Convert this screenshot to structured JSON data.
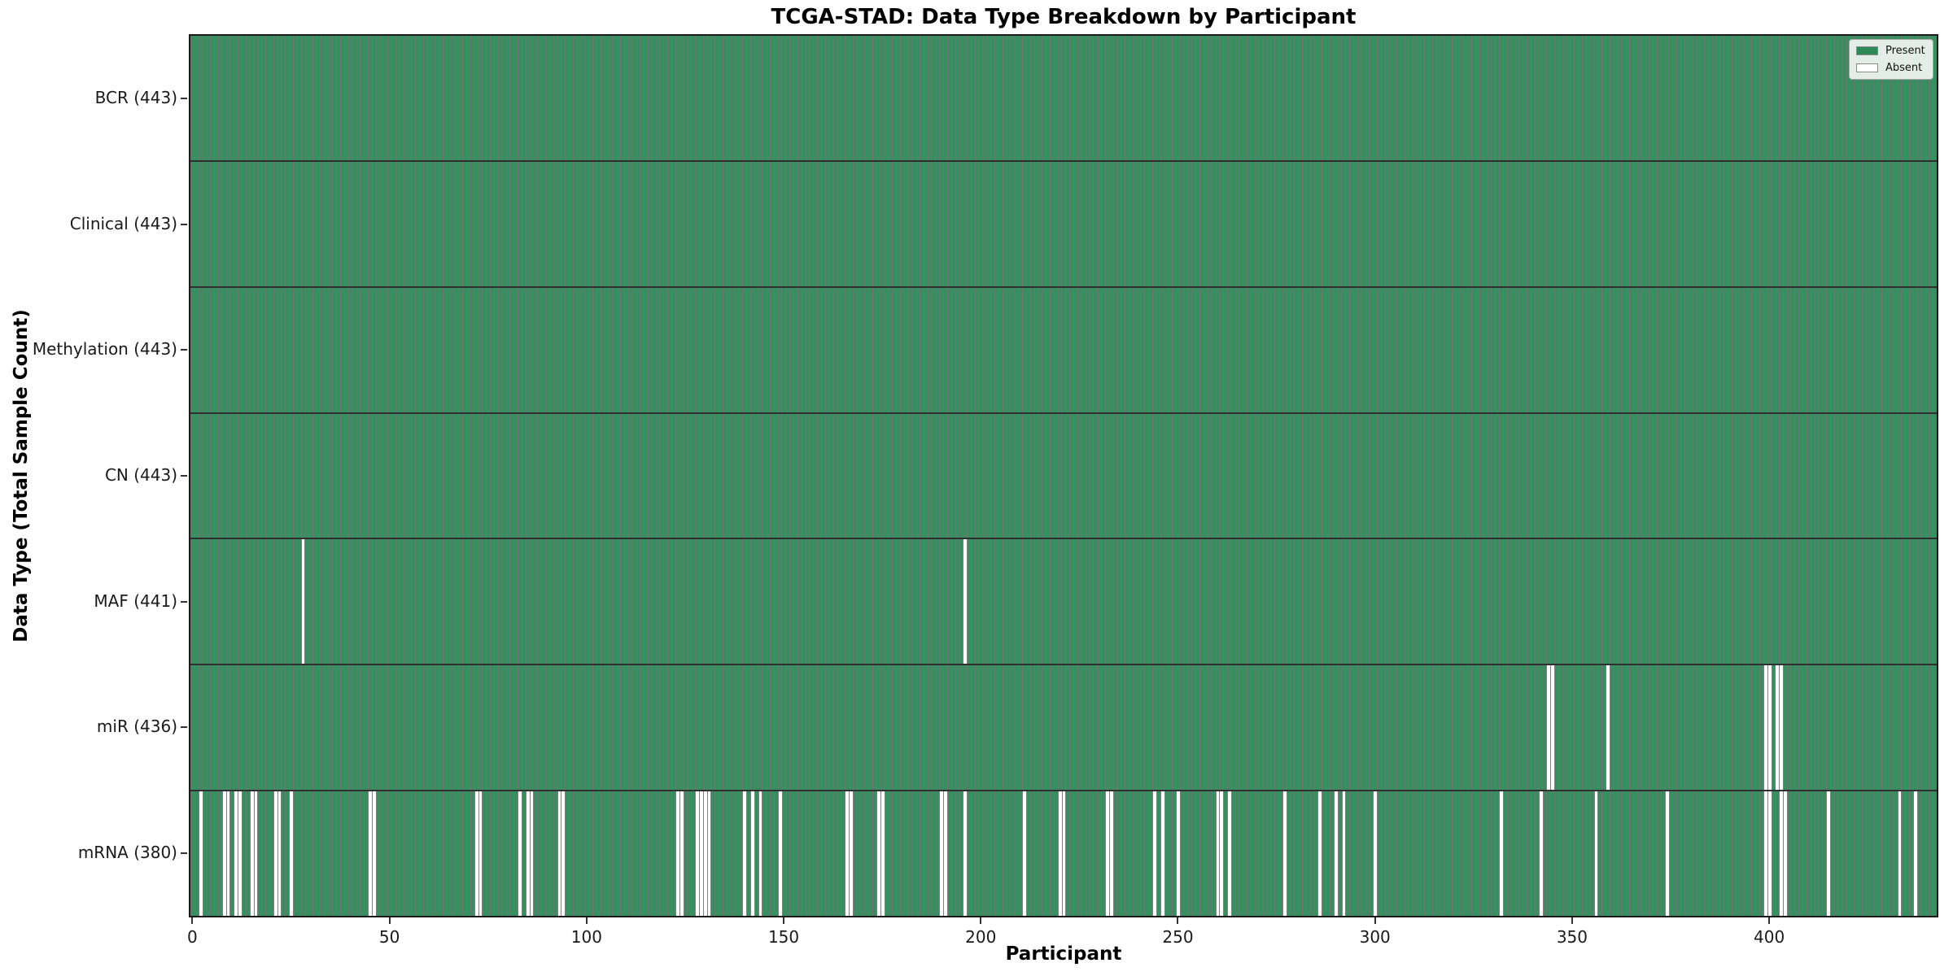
{
  "title": "TCGA-STAD: Data Type Breakdown by Participant",
  "axes": {
    "xlabel": "Participant",
    "ylabel": "Data Type (Total Sample Count)"
  },
  "colors": {
    "present": "#2e8b57",
    "present_fill_rendered": "#35905f",
    "absent": "#ffffff",
    "bar_edge": "rgba(0,0,0,0.55)",
    "figure_background": "#ffffff",
    "spine": "#1a1a1a"
  },
  "chart_data": {
    "type": "heatmap",
    "title": "TCGA-STAD: Data Type Breakdown by Participant",
    "xlabel": "Participant",
    "ylabel": "Data Type (Total Sample Count)",
    "n_participants": 443,
    "x_range": [
      0,
      443
    ],
    "x_ticks": [
      0,
      50,
      100,
      150,
      200,
      250,
      300,
      350,
      400
    ],
    "grid": false,
    "legend_position": "upper right",
    "legend": [
      {
        "label": "Present",
        "color": "#2e8b57"
      },
      {
        "label": "Absent",
        "color": "#ffffff"
      }
    ],
    "rows": [
      {
        "name": "BCR",
        "label": "BCR (443)",
        "present_count": 443,
        "absent_participants": []
      },
      {
        "name": "Clinical",
        "label": "Clinical (443)",
        "present_count": 443,
        "absent_participants": []
      },
      {
        "name": "Methylation",
        "label": "Methylation (443)",
        "present_count": 443,
        "absent_participants": []
      },
      {
        "name": "CN",
        "label": "CN (443)",
        "present_count": 443,
        "absent_participants": []
      },
      {
        "name": "MAF",
        "label": "MAF (441)",
        "present_count": 441,
        "absent_participants": [
          28,
          196
        ]
      },
      {
        "name": "miR",
        "label": "miR (436)",
        "present_count": 436,
        "absent_participants": [
          344,
          345,
          359,
          399,
          400,
          402,
          403
        ]
      },
      {
        "name": "mRNA",
        "label": "mRNA (380)",
        "present_count": 380,
        "absent_participants": [
          2,
          8,
          9,
          11,
          12,
          15,
          16,
          21,
          22,
          25,
          45,
          46,
          72,
          73,
          83,
          85,
          86,
          93,
          94,
          123,
          124,
          128,
          129,
          130,
          131,
          140,
          142,
          144,
          149,
          166,
          167,
          174,
          175,
          190,
          191,
          196,
          211,
          220,
          221,
          232,
          233,
          244,
          246,
          250,
          260,
          261,
          263,
          277,
          286,
          290,
          292,
          300,
          332,
          342,
          356,
          374,
          399,
          400,
          403,
          404,
          415,
          433,
          437
        ]
      }
    ]
  }
}
